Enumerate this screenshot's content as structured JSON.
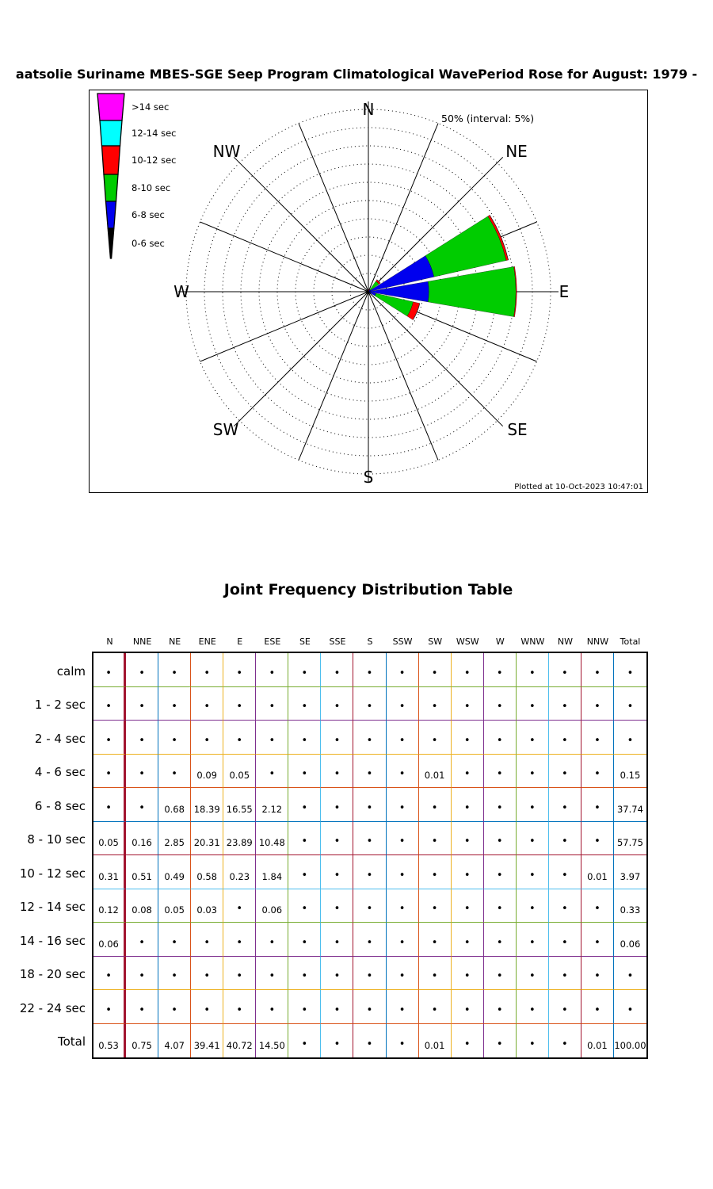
{
  "chart_data": {
    "type": "rose",
    "title": "aatsolie Suriname MBES-SGE Seep Program Climatological WavePeriod Rose for August: 1979 -",
    "annotation": "50% (interval: 5%)",
    "plotted_at": "Plotted at 10-Oct-2023 10:47:01",
    "units": "percent of observations",
    "max_radius_pct": 50,
    "ring_interval_pct": 5,
    "n_spokes": 16,
    "compass_labels": [
      "N",
      "NE",
      "E",
      "SE",
      "S",
      "SW",
      "W",
      "NW"
    ],
    "legend": [
      {
        "label": ">14 sec",
        "band": ">14",
        "color": "#FF00FF"
      },
      {
        "label": "12-14 sec",
        "band": "12-14",
        "color": "#00FFFF"
      },
      {
        "label": "10-12 sec",
        "band": "10-12",
        "color": "#FF0000"
      },
      {
        "label": "8-10 sec",
        "band": "8-10",
        "color": "#00CC00"
      },
      {
        "label": "6-8 sec",
        "band": "6-8",
        "color": "#0000EE"
      },
      {
        "label": "0-6 sec",
        "band": "0-6",
        "color": "#000000"
      }
    ],
    "categories": [
      "N",
      "NNE",
      "NE",
      "ENE",
      "E",
      "ESE",
      "SE",
      "SSE",
      "S",
      "SSW",
      "SW",
      "WSW",
      "W",
      "WNW",
      "NW",
      "NNW",
      "Total"
    ],
    "rows": [
      {
        "label": "calm",
        "band": "0-6",
        "values": [
          "•",
          "•",
          "•",
          "•",
          "•",
          "•",
          "•",
          "•",
          "•",
          "•",
          "•",
          "•",
          "•",
          "•",
          "•",
          "•",
          "•"
        ]
      },
      {
        "label": "1 - 2 sec",
        "band": "0-6",
        "values": [
          "•",
          "•",
          "•",
          "•",
          "•",
          "•",
          "•",
          "•",
          "•",
          "•",
          "•",
          "•",
          "•",
          "•",
          "•",
          "•",
          "•"
        ]
      },
      {
        "label": "2 - 4 sec",
        "band": "0-6",
        "values": [
          "•",
          "•",
          "•",
          "•",
          "•",
          "•",
          "•",
          "•",
          "•",
          "•",
          "•",
          "•",
          "•",
          "•",
          "•",
          "•",
          "•"
        ]
      },
      {
        "label": "4 - 6 sec",
        "band": "0-6",
        "values": [
          "•",
          "•",
          "•",
          "0.09",
          "0.05",
          "•",
          "•",
          "•",
          "•",
          "•",
          "0.01",
          "•",
          "•",
          "•",
          "•",
          "•",
          "0.15"
        ]
      },
      {
        "label": "6 - 8 sec",
        "band": "6-8",
        "values": [
          "•",
          "•",
          "0.68",
          "18.39",
          "16.55",
          "2.12",
          "•",
          "•",
          "•",
          "•",
          "•",
          "•",
          "•",
          "•",
          "•",
          "•",
          "37.74"
        ]
      },
      {
        "label": "8 - 10 sec",
        "band": "8-10",
        "values": [
          "0.05",
          "0.16",
          "2.85",
          "20.31",
          "23.89",
          "10.48",
          "•",
          "•",
          "•",
          "•",
          "•",
          "•",
          "•",
          "•",
          "•",
          "•",
          "57.75"
        ]
      },
      {
        "label": "10 - 12 sec",
        "band": "10-12",
        "values": [
          "0.31",
          "0.51",
          "0.49",
          "0.58",
          "0.23",
          "1.84",
          "•",
          "•",
          "•",
          "•",
          "•",
          "•",
          "•",
          "•",
          "•",
          "0.01",
          "3.97"
        ]
      },
      {
        "label": "12 - 14 sec",
        "band": "12-14",
        "values": [
          "0.12",
          "0.08",
          "0.05",
          "0.03",
          "•",
          "0.06",
          "•",
          "•",
          "•",
          "•",
          "•",
          "•",
          "•",
          "•",
          "•",
          "•",
          "0.33"
        ]
      },
      {
        "label": "14 - 16 sec",
        "band": ">14",
        "values": [
          "0.06",
          "•",
          "•",
          "•",
          "•",
          "•",
          "•",
          "•",
          "•",
          "•",
          "•",
          "•",
          "•",
          "•",
          "•",
          "•",
          "0.06"
        ]
      },
      {
        "label": "18 - 20 sec",
        "band": ">14",
        "values": [
          "•",
          "•",
          "•",
          "•",
          "•",
          "•",
          "•",
          "•",
          "•",
          "•",
          "•",
          "•",
          "•",
          "•",
          "•",
          "•",
          "•"
        ]
      },
      {
        "label": "22 - 24 sec",
        "band": ">14",
        "values": [
          "•",
          "•",
          "•",
          "•",
          "•",
          "•",
          "•",
          "•",
          "•",
          "•",
          "•",
          "•",
          "•",
          "•",
          "•",
          "•",
          "•"
        ]
      },
      {
        "label": "Total",
        "band": null,
        "values": [
          "0.53",
          "0.75",
          "4.07",
          "39.41",
          "40.72",
          "14.50",
          "•",
          "•",
          "•",
          "•",
          "0.01",
          "•",
          "•",
          "•",
          "•",
          "0.01",
          "100.00"
        ]
      }
    ]
  },
  "table": {
    "heading": "Joint Frequency Distribution Table",
    "grid_colors": {
      "vertical": [
        "#A2142F",
        "#0072BD",
        "#D95319",
        "#EDB120",
        "#7E2F8E",
        "#77AC30",
        "#4DBEEE",
        "#A2142F",
        "#0072BD",
        "#D95319",
        "#EDB120",
        "#7E2F8E",
        "#77AC30",
        "#4DBEEE",
        "#A2142F",
        "#0072BD"
      ],
      "horizontal": [
        "#77AC30",
        "#7E2F8E",
        "#EDB120",
        "#D95319",
        "#0072BD",
        "#A2142F",
        "#4DBEEE",
        "#77AC30",
        "#7E2F8E",
        "#EDB120",
        "#D95319"
      ],
      "border": "#000000",
      "border_bottom": "#0072BD"
    }
  }
}
